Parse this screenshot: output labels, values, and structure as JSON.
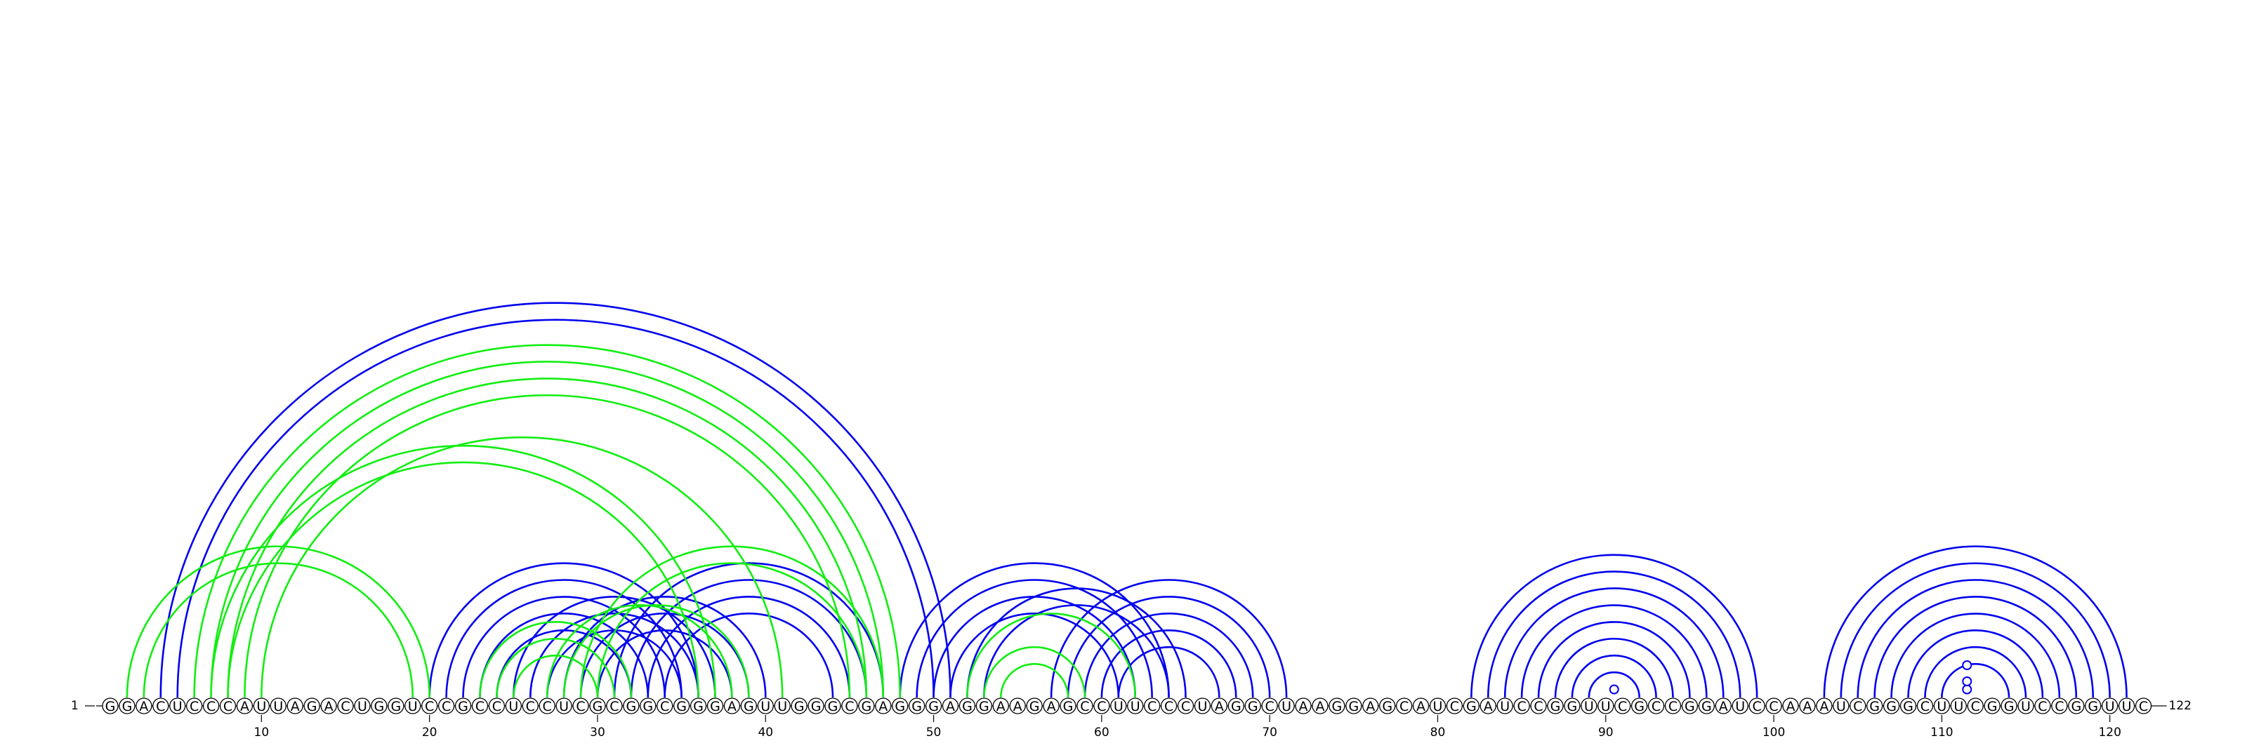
{
  "sequence": "GGACUCCCAUUAGACUGGUCCGCCUCCUCGCGGCGGGAGUUGGGCGAGGGAGGAAGAGCCUUCCCUAGGCUAAGGAGCAUCGAUCCGGUUCGCCGGAUCCAAAUCGGGCUUCGGUCCGGUUC",
  "start_label": "1",
  "end_label": "122",
  "colors": {
    "blue": "#0000ee",
    "green": "#11ee11",
    "black": "#000000"
  },
  "chart_data": {
    "type": "arc-diagram",
    "length": 122,
    "ticks": [
      10,
      20,
      30,
      40,
      50,
      60,
      70,
      80,
      90,
      100,
      110,
      120
    ],
    "blue_pairs": [
      [
        4,
        51
      ],
      [
        5,
        50
      ],
      [
        21,
        35
      ],
      [
        22,
        34
      ],
      [
        23,
        33
      ],
      [
        24,
        32
      ],
      [
        20,
        36
      ],
      [
        25,
        37
      ],
      [
        26,
        36
      ],
      [
        27,
        35
      ],
      [
        28,
        40
      ],
      [
        29,
        39
      ],
      [
        30,
        38
      ],
      [
        31,
        47
      ],
      [
        32,
        46
      ],
      [
        33,
        45
      ],
      [
        34,
        44
      ],
      [
        48,
        64
      ],
      [
        49,
        63
      ],
      [
        50,
        62
      ],
      [
        51,
        61
      ],
      [
        52,
        65
      ],
      [
        53,
        64
      ],
      [
        57,
        71
      ],
      [
        58,
        70
      ],
      [
        59,
        69
      ],
      [
        60,
        68
      ],
      [
        61,
        67
      ],
      [
        82,
        99
      ],
      [
        83,
        98
      ],
      [
        84,
        97
      ],
      [
        85,
        96
      ],
      [
        86,
        95
      ],
      [
        87,
        94
      ],
      [
        88,
        93
      ],
      [
        89,
        92
      ],
      [
        103,
        121
      ],
      [
        104,
        120
      ],
      [
        105,
        119
      ],
      [
        106,
        118
      ],
      [
        107,
        117
      ],
      [
        108,
        116
      ],
      [
        109,
        115
      ],
      [
        110,
        114
      ]
    ],
    "green_pairs": [
      [
        2,
        20
      ],
      [
        3,
        19
      ],
      [
        6,
        48
      ],
      [
        7,
        47
      ],
      [
        8,
        46
      ],
      [
        9,
        45
      ],
      [
        7,
        37
      ],
      [
        8,
        36
      ],
      [
        10,
        41
      ],
      [
        23,
        32
      ],
      [
        24,
        31
      ],
      [
        25,
        30
      ],
      [
        27,
        38
      ],
      [
        28,
        39
      ],
      [
        29,
        47
      ],
      [
        30,
        46
      ],
      [
        53,
        59
      ],
      [
        54,
        58
      ],
      [
        52,
        62
      ]
    ],
    "markers": [
      {
        "position": 90.5,
        "level": 1
      },
      {
        "position": 111.5,
        "level": 1
      },
      {
        "position": 111.5,
        "level": 2
      },
      {
        "position": 111.5,
        "level": 4
      }
    ]
  }
}
